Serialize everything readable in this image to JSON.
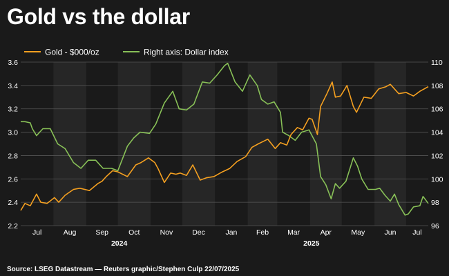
{
  "title": "Gold vs the dollar",
  "source": "Source: LSEG Datastream — Reuters graphic/Stephen Culp 22/07/2025",
  "colors": {
    "background": "#1a1a1a",
    "shade": "#262626",
    "grid": "#555555",
    "gold": "#f5a020",
    "dollar": "#88c057",
    "text": "#ffffff"
  },
  "chart_data": {
    "type": "line",
    "dual_axis": true,
    "legend_position": "top-left",
    "x_range": [
      "2024-07-01",
      "2025-07-22"
    ],
    "ylim_left": [
      2.2,
      3.6
    ],
    "ylim_right": [
      96,
      110
    ],
    "left_ticks": [
      "2.2",
      "2.4",
      "2.6",
      "2.8",
      "3.0",
      "3.2",
      "3.4",
      "3.6"
    ],
    "right_ticks": [
      "96",
      "98",
      "100",
      "102",
      "104",
      "106",
      "108",
      "110"
    ],
    "months": [
      {
        "label": "Jul",
        "start": "2024-07-01",
        "end": "2024-08-01"
      },
      {
        "label": "Aug",
        "start": "2024-08-01",
        "end": "2024-09-01"
      },
      {
        "label": "Sep",
        "start": "2024-09-01",
        "end": "2024-10-01"
      },
      {
        "label": "Oct",
        "start": "2024-10-01",
        "end": "2024-11-01"
      },
      {
        "label": "Nov",
        "start": "2024-11-01",
        "end": "2024-12-01"
      },
      {
        "label": "Dec",
        "start": "2024-12-01",
        "end": "2025-01-01"
      },
      {
        "label": "Jan",
        "start": "2025-01-01",
        "end": "2025-02-01"
      },
      {
        "label": "Feb",
        "start": "2025-02-01",
        "end": "2025-03-01"
      },
      {
        "label": "Mar",
        "start": "2025-03-01",
        "end": "2025-04-01"
      },
      {
        "label": "Apr",
        "start": "2025-04-01",
        "end": "2025-05-01"
      },
      {
        "label": "May",
        "start": "2025-05-01",
        "end": "2025-06-01"
      },
      {
        "label": "Jun",
        "start": "2025-06-01",
        "end": "2025-07-01"
      },
      {
        "label": "Jul",
        "start": "2025-07-01",
        "end": "2025-07-22"
      }
    ],
    "years": [
      {
        "label": "2024",
        "date": "2024-10-01"
      },
      {
        "label": "2025",
        "date": "2025-04-01"
      }
    ],
    "series": [
      {
        "name": "Gold - $000/oz",
        "axis": "left",
        "points": [
          [
            "2024-07-01",
            2.33
          ],
          [
            "2024-07-05",
            2.39
          ],
          [
            "2024-07-10",
            2.37
          ],
          [
            "2024-07-16",
            2.47
          ],
          [
            "2024-07-20",
            2.4
          ],
          [
            "2024-07-26",
            2.39
          ],
          [
            "2024-08-02",
            2.44
          ],
          [
            "2024-08-06",
            2.4
          ],
          [
            "2024-08-12",
            2.46
          ],
          [
            "2024-08-20",
            2.51
          ],
          [
            "2024-08-26",
            2.52
          ],
          [
            "2024-09-04",
            2.5
          ],
          [
            "2024-09-12",
            2.56
          ],
          [
            "2024-09-16",
            2.58
          ],
          [
            "2024-09-20",
            2.62
          ],
          [
            "2024-09-26",
            2.67
          ],
          [
            "2024-10-01",
            2.66
          ],
          [
            "2024-10-10",
            2.62
          ],
          [
            "2024-10-18",
            2.72
          ],
          [
            "2024-10-23",
            2.74
          ],
          [
            "2024-10-30",
            2.78
          ],
          [
            "2024-11-05",
            2.74
          ],
          [
            "2024-11-08",
            2.69
          ],
          [
            "2024-11-14",
            2.57
          ],
          [
            "2024-11-20",
            2.65
          ],
          [
            "2024-11-25",
            2.64
          ],
          [
            "2024-11-29",
            2.65
          ],
          [
            "2024-12-05",
            2.63
          ],
          [
            "2024-12-11",
            2.72
          ],
          [
            "2024-12-18",
            2.59
          ],
          [
            "2024-12-24",
            2.61
          ],
          [
            "2024-12-31",
            2.62
          ],
          [
            "2025-01-08",
            2.66
          ],
          [
            "2025-01-15",
            2.69
          ],
          [
            "2025-01-22",
            2.75
          ],
          [
            "2025-01-30",
            2.79
          ],
          [
            "2025-02-05",
            2.87
          ],
          [
            "2025-02-11",
            2.9
          ],
          [
            "2025-02-20",
            2.94
          ],
          [
            "2025-02-27",
            2.86
          ],
          [
            "2025-03-04",
            2.91
          ],
          [
            "2025-03-10",
            2.89
          ],
          [
            "2025-03-14",
            2.98
          ],
          [
            "2025-03-20",
            3.04
          ],
          [
            "2025-03-25",
            3.02
          ],
          [
            "2025-03-31",
            3.12
          ],
          [
            "2025-04-03",
            3.11
          ],
          [
            "2025-04-08",
            2.98
          ],
          [
            "2025-04-11",
            3.22
          ],
          [
            "2025-04-17",
            3.33
          ],
          [
            "2025-04-22",
            3.43
          ],
          [
            "2025-04-25",
            3.3
          ],
          [
            "2025-04-30",
            3.31
          ],
          [
            "2025-05-06",
            3.4
          ],
          [
            "2025-05-12",
            3.22
          ],
          [
            "2025-05-15",
            3.17
          ],
          [
            "2025-05-22",
            3.3
          ],
          [
            "2025-05-29",
            3.29
          ],
          [
            "2025-06-05",
            3.37
          ],
          [
            "2025-06-12",
            3.39
          ],
          [
            "2025-06-16",
            3.41
          ],
          [
            "2025-06-20",
            3.37
          ],
          [
            "2025-06-24",
            3.33
          ],
          [
            "2025-07-01",
            3.34
          ],
          [
            "2025-07-08",
            3.31
          ],
          [
            "2025-07-14",
            3.35
          ],
          [
            "2025-07-22",
            3.39
          ]
        ]
      },
      {
        "name": "Right axis: Dollar index",
        "axis": "right",
        "points": [
          [
            "2024-07-01",
            104.9
          ],
          [
            "2024-07-05",
            104.9
          ],
          [
            "2024-07-10",
            104.8
          ],
          [
            "2024-07-12",
            104.3
          ],
          [
            "2024-07-16",
            103.7
          ],
          [
            "2024-07-22",
            104.3
          ],
          [
            "2024-07-29",
            104.3
          ],
          [
            "2024-08-05",
            103.0
          ],
          [
            "2024-08-12",
            102.6
          ],
          [
            "2024-08-20",
            101.4
          ],
          [
            "2024-08-27",
            100.9
          ],
          [
            "2024-09-03",
            101.6
          ],
          [
            "2024-09-10",
            101.6
          ],
          [
            "2024-09-17",
            100.9
          ],
          [
            "2024-09-25",
            100.9
          ],
          [
            "2024-10-01",
            100.7
          ],
          [
            "2024-10-10",
            102.8
          ],
          [
            "2024-10-16",
            103.5
          ],
          [
            "2024-10-22",
            104.0
          ],
          [
            "2024-10-31",
            103.9
          ],
          [
            "2024-11-06",
            104.7
          ],
          [
            "2024-11-14",
            106.5
          ],
          [
            "2024-11-22",
            107.5
          ],
          [
            "2024-11-28",
            106.0
          ],
          [
            "2024-12-05",
            105.9
          ],
          [
            "2024-12-12",
            106.4
          ],
          [
            "2024-12-20",
            108.3
          ],
          [
            "2024-12-27",
            108.2
          ],
          [
            "2025-01-03",
            108.9
          ],
          [
            "2025-01-10",
            109.7
          ],
          [
            "2025-01-13",
            109.9
          ],
          [
            "2025-01-20",
            108.3
          ],
          [
            "2025-01-27",
            107.5
          ],
          [
            "2025-02-03",
            108.9
          ],
          [
            "2025-02-10",
            108.0
          ],
          [
            "2025-02-14",
            106.8
          ],
          [
            "2025-02-20",
            106.4
          ],
          [
            "2025-02-26",
            106.6
          ],
          [
            "2025-03-04",
            105.7
          ],
          [
            "2025-03-06",
            104.0
          ],
          [
            "2025-03-12",
            103.7
          ],
          [
            "2025-03-18",
            103.3
          ],
          [
            "2025-03-24",
            104.0
          ],
          [
            "2025-03-31",
            104.2
          ],
          [
            "2025-04-07",
            103.0
          ],
          [
            "2025-04-11",
            100.2
          ],
          [
            "2025-04-16",
            99.5
          ],
          [
            "2025-04-21",
            98.3
          ],
          [
            "2025-04-25",
            99.6
          ],
          [
            "2025-04-29",
            99.2
          ],
          [
            "2025-05-05",
            99.8
          ],
          [
            "2025-05-12",
            101.8
          ],
          [
            "2025-05-16",
            101.1
          ],
          [
            "2025-05-20",
            100.0
          ],
          [
            "2025-05-26",
            99.1
          ],
          [
            "2025-06-02",
            99.1
          ],
          [
            "2025-06-06",
            99.2
          ],
          [
            "2025-06-11",
            98.6
          ],
          [
            "2025-06-16",
            98.1
          ],
          [
            "2025-06-20",
            98.7
          ],
          [
            "2025-06-24",
            97.8
          ],
          [
            "2025-06-30",
            96.9
          ],
          [
            "2025-07-03",
            97.0
          ],
          [
            "2025-07-08",
            97.6
          ],
          [
            "2025-07-14",
            97.7
          ],
          [
            "2025-07-17",
            98.5
          ],
          [
            "2025-07-22",
            97.9
          ]
        ]
      }
    ]
  }
}
